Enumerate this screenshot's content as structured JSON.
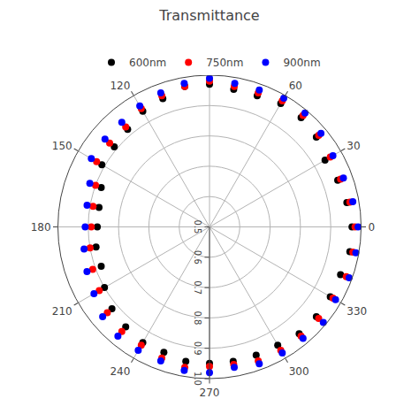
{
  "chart_data": {
    "type": "polar",
    "title": "Transmittance",
    "x": [
      0,
      10,
      20,
      30,
      40,
      50,
      60,
      70,
      80,
      90,
      100,
      110,
      120,
      130,
      140,
      150,
      160,
      170,
      180,
      190,
      200,
      210,
      220,
      230,
      240,
      250,
      260,
      270,
      280,
      290,
      300,
      310,
      320,
      330,
      340,
      350
    ],
    "series": [
      {
        "name": "600nm",
        "color": "black",
        "values": [
          0.97,
          0.96,
          0.95,
          0.94,
          0.96,
          0.97,
          0.97,
          0.96,
          0.96,
          0.97,
          0.97,
          0.95,
          0.94,
          0.92,
          0.91,
          0.91,
          0.88,
          0.87,
          0.87,
          0.88,
          0.88,
          0.9,
          0.92,
          0.93,
          0.94,
          0.94,
          0.95,
          0.95,
          0.95,
          0.95,
          0.95,
          0.96,
          0.96,
          0.96,
          0.96,
          0.97
        ]
      },
      {
        "name": "750nm",
        "color": "red",
        "values": [
          0.98,
          0.97,
          0.96,
          0.96,
          0.97,
          0.98,
          0.98,
          0.97,
          0.97,
          0.98,
          0.97,
          0.96,
          0.95,
          0.93,
          0.93,
          0.93,
          0.9,
          0.89,
          0.89,
          0.9,
          0.91,
          0.92,
          0.94,
          0.95,
          0.95,
          0.96,
          0.97,
          0.96,
          0.96,
          0.97,
          0.97,
          0.97,
          0.97,
          0.97,
          0.98,
          0.98
        ]
      },
      {
        "name": "900nm",
        "color": "blue",
        "values": [
          0.99,
          0.98,
          0.97,
          0.97,
          0.98,
          0.99,
          0.99,
          0.98,
          0.98,
          0.99,
          0.98,
          0.97,
          0.96,
          0.95,
          0.95,
          0.95,
          0.92,
          0.91,
          0.91,
          0.92,
          0.93,
          0.94,
          0.96,
          0.97,
          0.97,
          0.97,
          0.98,
          0.98,
          0.97,
          0.98,
          0.98,
          0.98,
          0.99,
          0.98,
          0.99,
          0.99
        ]
      }
    ],
    "xticks": [
      0,
      30,
      60,
      90,
      120,
      150,
      180,
      210,
      240,
      270,
      300,
      330
    ],
    "ylim": [
      0.5,
      1.0
    ],
    "yticks": [
      0.5,
      0.6,
      0.7,
      0.8,
      0.9,
      {
        "value": 1.0,
        "label": "1.0"
      }
    ],
    "grid": true,
    "legend": "top",
    "marker": "circle"
  }
}
